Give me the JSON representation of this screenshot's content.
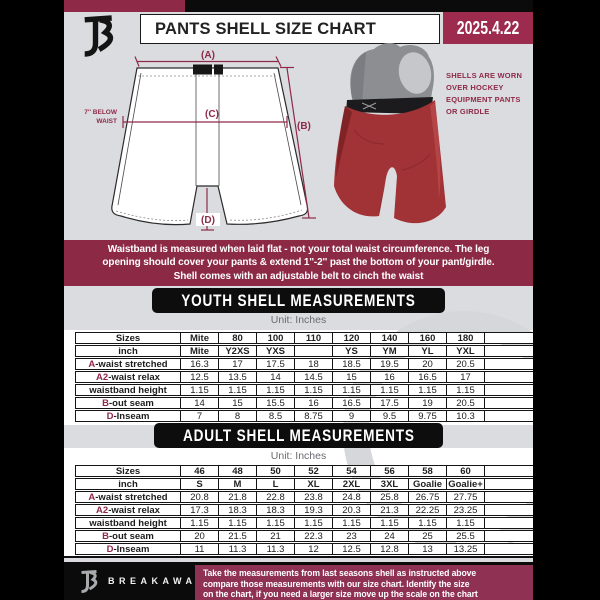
{
  "header": {
    "title": "PANTS SHELL SIZE CHART",
    "date": "2025.4.22"
  },
  "colors": {
    "maroon": "#8e2a47",
    "date_box_maroon": "#9c2b4e",
    "footer_maroon": "#8e3152",
    "background_gray": "#dbdce0",
    "shell_red": "#a13336"
  },
  "diagram": {
    "labels": {
      "a": "(A)",
      "b": "(B)",
      "c": "(C)",
      "d": "(D)"
    },
    "waist_note": [
      "7'' BELOW",
      "WAIST"
    ],
    "caption": "SHELLS ARE WORN\nOVER HOCKEY\nEQUIPMENT PANTS\nOR GIRDLE"
  },
  "banner": {
    "lines": [
      "Waistband is measured when laid flat - not your total waist circumference. The leg",
      "opening should cover your pants & extend 1''-2'' past the bottom of your pant/girdle.",
      "Shell comes with an adjustable belt to cinch the waist"
    ]
  },
  "youth": {
    "heading": "YOUTH SHELL MEASUREMENTS",
    "unit": "Unit: Inches",
    "table": {
      "rows": [
        {
          "prefix": "",
          "label": "Sizes",
          "header": true,
          "values": [
            "Mite",
            "80",
            "100",
            "110",
            "120",
            "140",
            "160",
            "180"
          ]
        },
        {
          "prefix": "",
          "label": "inch",
          "header": true,
          "values": [
            "Mite",
            "Y2XS",
            "YXS",
            "",
            "YS",
            "YM",
            "YL",
            "YXL"
          ]
        },
        {
          "prefix": "A",
          "label": "-waist stretched",
          "header": false,
          "values": [
            "16.3",
            "17",
            "17.5",
            "18",
            "18.5",
            "19.5",
            "20",
            "20.5"
          ]
        },
        {
          "prefix": "A2",
          "label": "-waist relax",
          "header": false,
          "values": [
            "12.5",
            "13.5",
            "14",
            "14.5",
            "15",
            "16",
            "16.5",
            "17"
          ]
        },
        {
          "prefix": "",
          "label": "waistband height",
          "header": false,
          "values": [
            "1.15",
            "1.15",
            "1.15",
            "1.15",
            "1.15",
            "1.15",
            "1.15",
            "1.15"
          ]
        },
        {
          "prefix": "B",
          "label": "-out seam",
          "header": false,
          "values": [
            "14",
            "15",
            "15.5",
            "16",
            "16.5",
            "17.5",
            "19",
            "20.5"
          ]
        },
        {
          "prefix": "D",
          "label": "-Inseam",
          "header": false,
          "values": [
            "7",
            "8",
            "8.5",
            "8.75",
            "9",
            "9.5",
            "9.75",
            "10.3"
          ]
        }
      ]
    }
  },
  "adult": {
    "heading": "ADULT SHELL MEASUREMENTS",
    "unit": "Unit: Inches",
    "table": {
      "rows": [
        {
          "prefix": "",
          "label": "Sizes",
          "header": true,
          "values": [
            "46",
            "48",
            "50",
            "52",
            "54",
            "56",
            "58",
            "60"
          ]
        },
        {
          "prefix": "",
          "label": "inch",
          "header": true,
          "values": [
            "S",
            "M",
            "L",
            "XL",
            "2XL",
            "3XL",
            "Goalie",
            "Goalie+"
          ]
        },
        {
          "prefix": "A",
          "label": "-waist stretched",
          "header": false,
          "values": [
            "20.8",
            "21.8",
            "22.8",
            "23.8",
            "24.8",
            "25.8",
            "26.75",
            "27.75"
          ]
        },
        {
          "prefix": "A2",
          "label": "-waist relax",
          "header": false,
          "values": [
            "17.3",
            "18.3",
            "18.3",
            "19.3",
            "20.3",
            "21.3",
            "22.25",
            "23.25"
          ]
        },
        {
          "prefix": "",
          "label": "waistband height",
          "header": false,
          "values": [
            "1.15",
            "1.15",
            "1.15",
            "1.15",
            "1.15",
            "1.15",
            "1.15",
            "1.15"
          ]
        },
        {
          "prefix": "B",
          "label": "-out seam",
          "header": false,
          "values": [
            "20",
            "21.5",
            "21",
            "22.3",
            "23",
            "24",
            "25",
            "25.5"
          ]
        },
        {
          "prefix": "D",
          "label": "-Inseam",
          "header": false,
          "values": [
            "11",
            "11.3",
            "11.3",
            "12",
            "12.5",
            "12.8",
            "13",
            "13.25"
          ]
        }
      ]
    }
  },
  "footer": {
    "brand": "BREAKAWAY",
    "lines": [
      "Take the measurements from last seasons shell as instructed above",
      "compare those measurements with our size chart. Identify the size",
      "on the chart, if you need a larger size move up the scale on the chart"
    ]
  }
}
